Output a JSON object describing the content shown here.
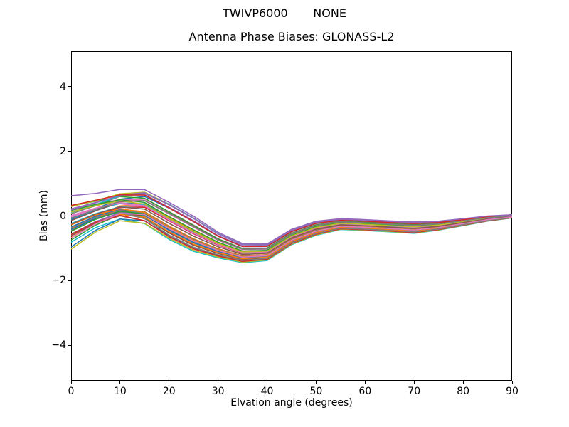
{
  "figure": {
    "background": "#ffffff",
    "suptitle": "TWIVP6000       NONE"
  },
  "chart_data": {
    "type": "line",
    "title": "Antenna Phase Biases: GLONASS-L2",
    "xlabel": "Elvation angle (degrees)",
    "ylabel": "Bias (mm)",
    "xlim": [
      0,
      90
    ],
    "ylim": [
      -5.1,
      5.1
    ],
    "xticks": [
      0,
      10,
      20,
      30,
      40,
      50,
      60,
      70,
      80,
      90
    ],
    "xtick_labels": [
      "0",
      "10",
      "20",
      "30",
      "40",
      "50",
      "60",
      "70",
      "80",
      "90"
    ],
    "yticks": [
      4,
      2,
      0,
      -2,
      -4
    ],
    "ytick_labels": [
      "4",
      "2",
      "0",
      "−2",
      "−4"
    ],
    "grid": false,
    "legend": null,
    "x": [
      0,
      5,
      10,
      15,
      20,
      25,
      30,
      35,
      40,
      45,
      50,
      55,
      60,
      65,
      70,
      75,
      80,
      85,
      90
    ],
    "bundle": {
      "description": "Dense bundle of per-satellite/antenna phase-bias curves; values in mm. mean = bundle center, halfwidth = total half-spread around mean, crossing = extra random scatter at low elevation causing line crossings.",
      "mean": [
        -0.2,
        0.1,
        0.33,
        0.28,
        -0.15,
        -0.55,
        -0.9,
        -1.15,
        -1.12,
        -0.65,
        -0.38,
        -0.25,
        -0.28,
        -0.32,
        -0.36,
        -0.3,
        -0.19,
        -0.08,
        -0.01
      ],
      "halfwidth": [
        0.9,
        0.65,
        0.52,
        0.55,
        0.58,
        0.55,
        0.4,
        0.3,
        0.26,
        0.24,
        0.22,
        0.17,
        0.17,
        0.17,
        0.18,
        0.14,
        0.11,
        0.08,
        0.05
      ],
      "crossing": [
        0.3,
        0.2,
        0.1,
        0.03,
        0,
        0,
        0,
        0,
        0,
        0,
        0,
        0,
        0,
        0,
        0,
        0,
        0,
        0,
        0
      ],
      "series_count": 48,
      "seed": 42
    },
    "colors": [
      "#1f77b4",
      "#ff7f0e",
      "#2ca02c",
      "#d62728",
      "#9467bd",
      "#8c564b",
      "#e377c2",
      "#7f7f7f",
      "#bcbd22",
      "#17becf"
    ],
    "line_width": 1.5
  }
}
